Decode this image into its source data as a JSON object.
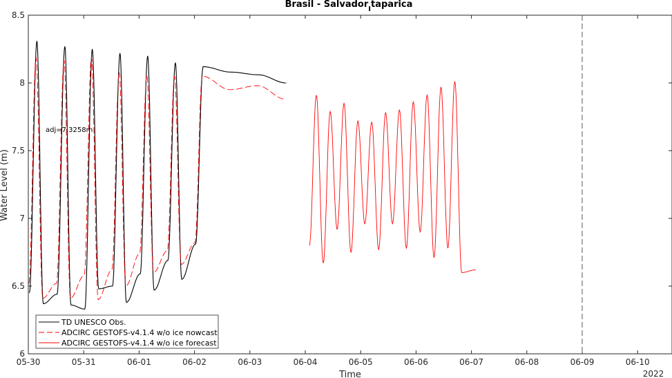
{
  "chart_data": {
    "type": "line",
    "title_main": "Brasil - Salvador",
    "title_sub": "I",
    "title_tail": "taparica",
    "xlabel": "Time",
    "ylabel": "Water Level (m)",
    "year_label": "2022",
    "annotation": "adj=7.3258m",
    "x_ticks": [
      "05-30",
      "05-31",
      "06-01",
      "06-02",
      "06-03",
      "06-04",
      "06-05",
      "06-06",
      "06-07",
      "06-08",
      "06-09",
      "06-10"
    ],
    "xlim_days": [
      0,
      11.3
    ],
    "ylim": [
      6,
      8.5
    ],
    "y_ticks": [
      "6",
      "6.5",
      "7",
      "7.5",
      "8",
      "8.5"
    ],
    "y_tick_values": [
      6,
      6.5,
      7,
      7.5,
      8,
      8.5
    ],
    "forecast_start_day": 10,
    "colors": {
      "obs": "#000000",
      "nowcast": "#ff0000",
      "forecast": "#ff0000",
      "divider": "#555555"
    },
    "series": [
      {
        "name": "TD UNESCO Obs.",
        "style": "solid",
        "peaks": [
          {
            "t": 0.31,
            "v": 8.31
          },
          {
            "t": 1.32,
            "v": 8.27
          },
          {
            "t": 2.31,
            "v": 8.25
          },
          {
            "t": 3.31,
            "v": 8.22
          },
          {
            "t": 4.31,
            "v": 8.2
          },
          {
            "t": 5.31,
            "v": 8.15
          },
          {
            "t": 6.31,
            "v": 8.12
          },
          {
            "t": 7.31,
            "v": 8.08
          },
          {
            "t": 8.31,
            "v": 8.06
          },
          {
            "t": 9.31,
            "v": 8.0
          }
        ],
        "troughs": [
          {
            "t": 0.04,
            "v": 6.45
          },
          {
            "t": 0.54,
            "v": 6.37
          },
          {
            "t": 1.04,
            "v": 6.44
          },
          {
            "t": 1.54,
            "v": 6.36
          },
          {
            "t": 2.04,
            "v": 6.33
          },
          {
            "t": 2.54,
            "v": 6.48
          },
          {
            "t": 3.04,
            "v": 6.5
          },
          {
            "t": 3.54,
            "v": 6.38
          },
          {
            "t": 4.04,
            "v": 6.59
          },
          {
            "t": 4.54,
            "v": 6.47
          },
          {
            "t": 5.04,
            "v": 6.69
          },
          {
            "t": 5.54,
            "v": 6.55
          },
          {
            "t": 6.04,
            "v": 6.81
          }
        ]
      },
      {
        "name": "ADCIRC GESTOFS-v4.1.4 w/o ice nowcast",
        "style": "dashed",
        "peaks": [
          {
            "t": 0.28,
            "v": 8.19
          },
          {
            "t": 1.29,
            "v": 8.17
          },
          {
            "t": 2.28,
            "v": 8.19
          },
          {
            "t": 3.28,
            "v": 8.08
          },
          {
            "t": 4.28,
            "v": 8.06
          },
          {
            "t": 5.28,
            "v": 8.05
          },
          {
            "t": 6.28,
            "v": 8.05
          },
          {
            "t": 7.28,
            "v": 7.95
          },
          {
            "t": 8.28,
            "v": 7.98
          },
          {
            "t": 9.28,
            "v": 7.88
          }
        ],
        "troughs": [
          {
            "t": 0.02,
            "v": 6.52
          },
          {
            "t": 0.52,
            "v": 6.41
          },
          {
            "t": 1.02,
            "v": 6.52
          },
          {
            "t": 1.52,
            "v": 6.41
          },
          {
            "t": 2.02,
            "v": 6.58
          },
          {
            "t": 2.52,
            "v": 6.4
          },
          {
            "t": 3.02,
            "v": 6.62
          },
          {
            "t": 3.52,
            "v": 6.5
          },
          {
            "t": 4.02,
            "v": 6.74
          },
          {
            "t": 4.52,
            "v": 6.6
          },
          {
            "t": 5.02,
            "v": 6.76
          },
          {
            "t": 5.52,
            "v": 6.66
          },
          {
            "t": 6.02,
            "v": 6.82
          }
        ]
      },
      {
        "name": "ADCIRC GESTOFS-v4.1.4 w/o ice forecast",
        "style": "solid",
        "peaks": [
          {
            "t": 10.4,
            "v": 7.91
          },
          {
            "t": 10.9,
            "v": 7.79
          },
          {
            "t": 11.4,
            "v": 7.85
          },
          {
            "t": 11.9,
            "v": 7.72
          },
          {
            "t": 12.4,
            "v": 7.71
          },
          {
            "t": 12.9,
            "v": 7.78
          },
          {
            "t": 13.4,
            "v": 7.8
          },
          {
            "t": 13.9,
            "v": 7.86
          },
          {
            "t": 14.4,
            "v": 7.91
          },
          {
            "t": 14.9,
            "v": 7.97
          },
          {
            "t": 15.4,
            "v": 8.01
          }
        ],
        "troughs": [
          {
            "t": 10.15,
            "v": 6.8
          },
          {
            "t": 10.65,
            "v": 6.67
          },
          {
            "t": 11.15,
            "v": 6.92
          },
          {
            "t": 11.65,
            "v": 6.75
          },
          {
            "t": 12.15,
            "v": 6.96
          },
          {
            "t": 12.65,
            "v": 6.77
          },
          {
            "t": 13.15,
            "v": 6.96
          },
          {
            "t": 13.65,
            "v": 6.78
          },
          {
            "t": 14.15,
            "v": 6.9
          },
          {
            "t": 14.65,
            "v": 6.71
          },
          {
            "t": 15.15,
            "v": 6.78
          },
          {
            "t": 15.65,
            "v": 6.6
          },
          {
            "t": 16.15,
            "v": 6.62
          }
        ]
      }
    ]
  }
}
